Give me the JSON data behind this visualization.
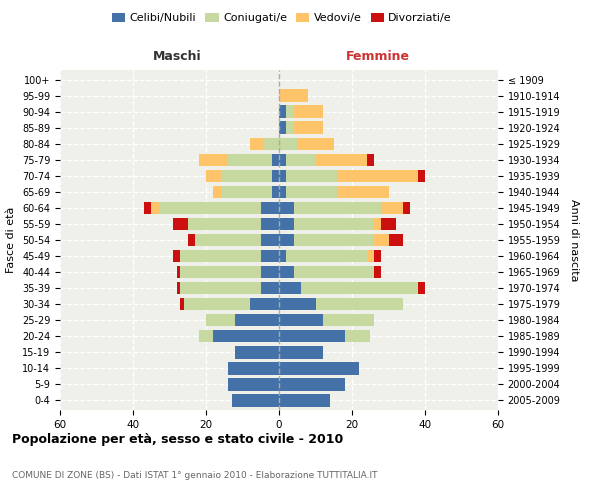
{
  "age_groups": [
    "0-4",
    "5-9",
    "10-14",
    "15-19",
    "20-24",
    "25-29",
    "30-34",
    "35-39",
    "40-44",
    "45-49",
    "50-54",
    "55-59",
    "60-64",
    "65-69",
    "70-74",
    "75-79",
    "80-84",
    "85-89",
    "90-94",
    "95-99",
    "100+"
  ],
  "birth_years": [
    "2005-2009",
    "2000-2004",
    "1995-1999",
    "1990-1994",
    "1985-1989",
    "1980-1984",
    "1975-1979",
    "1970-1974",
    "1965-1969",
    "1960-1964",
    "1955-1959",
    "1950-1954",
    "1945-1949",
    "1940-1944",
    "1935-1939",
    "1930-1934",
    "1925-1929",
    "1920-1924",
    "1915-1919",
    "1910-1914",
    "≤ 1909"
  ],
  "male": {
    "celibi": [
      13,
      14,
      14,
      12,
      18,
      12,
      8,
      5,
      5,
      5,
      5,
      5,
      5,
      2,
      2,
      2,
      0,
      0,
      0,
      0,
      0
    ],
    "coniugati": [
      0,
      0,
      0,
      0,
      4,
      8,
      18,
      22,
      22,
      22,
      18,
      20,
      28,
      14,
      14,
      12,
      4,
      0,
      0,
      0,
      0
    ],
    "vedovi": [
      0,
      0,
      0,
      0,
      0,
      0,
      0,
      0,
      0,
      0,
      0,
      0,
      2,
      2,
      4,
      8,
      4,
      0,
      0,
      0,
      0
    ],
    "divorziati": [
      0,
      0,
      0,
      0,
      0,
      0,
      1,
      1,
      1,
      2,
      2,
      4,
      2,
      0,
      0,
      0,
      0,
      0,
      0,
      0,
      0
    ]
  },
  "female": {
    "nubili": [
      14,
      18,
      22,
      12,
      18,
      12,
      10,
      6,
      4,
      2,
      4,
      4,
      4,
      2,
      2,
      2,
      0,
      2,
      2,
      0,
      0
    ],
    "coniugate": [
      0,
      0,
      0,
      0,
      7,
      14,
      24,
      32,
      22,
      22,
      22,
      22,
      24,
      14,
      14,
      8,
      5,
      2,
      2,
      0,
      0
    ],
    "vedove": [
      0,
      0,
      0,
      0,
      0,
      0,
      0,
      0,
      0,
      2,
      4,
      2,
      6,
      14,
      22,
      14,
      10,
      8,
      8,
      8,
      0
    ],
    "divorziate": [
      0,
      0,
      0,
      0,
      0,
      0,
      0,
      2,
      2,
      2,
      4,
      4,
      2,
      0,
      2,
      2,
      0,
      0,
      0,
      0,
      0
    ]
  },
  "colors": {
    "celibi": "#4472a8",
    "coniugati": "#c5d9a0",
    "vedovi": "#ffc469",
    "divorziati": "#cc1010"
  },
  "xlim": 60,
  "title": "Popolazione per età, sesso e stato civile - 2010",
  "subtitle": "COMUNE DI ZONE (BS) - Dati ISTAT 1° gennaio 2010 - Elaborazione TUTTITALIA.IT",
  "ylabel_left": "Fasce di età",
  "ylabel_right": "Anni di nascita",
  "xlabel_left": "Maschi",
  "xlabel_right": "Femmine"
}
